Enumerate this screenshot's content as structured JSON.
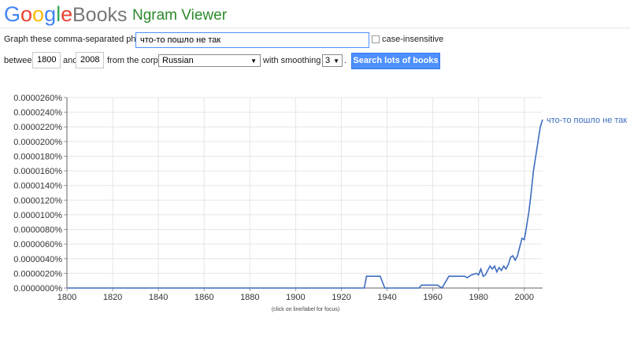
{
  "header": {
    "logo": "Google",
    "product": "Books",
    "title": "Ngram Viewer"
  },
  "form": {
    "phrases_label": "Graph these comma-separated phrases:",
    "phrases": "что-то пошло не так",
    "case_insensitive": "case-insensitive",
    "between": "between",
    "start_year": "1800",
    "and": "and",
    "end_year": "2008",
    "corpus_label": "from the corpus",
    "corpus": "Russian",
    "smoothing_label": "with smoothing of",
    "smoothing": "3",
    "period": ".",
    "button": "Search lots of books"
  },
  "chart_data": {
    "type": "line",
    "note": "(click on line/label for focus)",
    "x": [
      1800,
      1930,
      1931,
      1937,
      1939,
      1954,
      1955,
      1962,
      1964,
      1967,
      1974,
      1975,
      1977,
      1979,
      1980,
      1981,
      1982,
      1983,
      1985,
      1986,
      1987,
      1988,
      1989,
      1990,
      1991,
      1992,
      1993,
      1994,
      1995,
      1996,
      1997,
      1998,
      1999,
      2000,
      2001,
      2002,
      2003,
      2004,
      2005,
      2006,
      2007,
      2008
    ],
    "series": [
      {
        "name": "что-то пошло не так",
        "color": "#3d6cc0",
        "values": [
          0,
          0,
          1.6e-07,
          1.6e-07,
          0,
          0,
          4e-08,
          4e-08,
          0,
          1.6e-07,
          1.6e-07,
          1.4e-07,
          1.8e-07,
          2e-07,
          1.8e-07,
          2.6e-07,
          1.6e-07,
          1.8e-07,
          3e-07,
          2.6e-07,
          3e-07,
          2.2e-07,
          2.8e-07,
          2.4e-07,
          3e-07,
          2.6e-07,
          3.2e-07,
          4.2e-07,
          4.4e-07,
          3.8e-07,
          4.4e-07,
          5.6e-07,
          6.8e-07,
          6.6e-07,
          8.4e-07,
          1.04e-06,
          1.3e-06,
          1.6e-06,
          1.8e-06,
          2e-06,
          2.2e-06,
          2.3e-06
        ]
      }
    ],
    "xlim": [
      1800,
      2008
    ],
    "xticks": [
      1800,
      1820,
      1840,
      1860,
      1880,
      1900,
      1920,
      1940,
      1960,
      1980,
      2000
    ],
    "ylim": [
      0,
      2.6e-06
    ],
    "yticks": [
      {
        "value": 0,
        "label": "0.0000000%"
      },
      {
        "value": 2e-07,
        "label": "0.0000020%"
      },
      {
        "value": 4e-07,
        "label": "0.0000040%"
      },
      {
        "value": 6e-07,
        "label": "0.0000060%"
      },
      {
        "value": 8e-07,
        "label": "0.0000080%"
      },
      {
        "value": 1e-06,
        "label": "0.0000100%"
      },
      {
        "value": 1.2e-06,
        "label": "0.0000120%"
      },
      {
        "value": 1.4e-06,
        "label": "0.0000140%"
      },
      {
        "value": 1.6e-06,
        "label": "0.0000160%"
      },
      {
        "value": 1.8e-06,
        "label": "0.0000180%"
      },
      {
        "value": 2e-06,
        "label": "0.0000200%"
      },
      {
        "value": 2.2e-06,
        "label": "0.0000220%"
      },
      {
        "value": 2.4e-06,
        "label": "0.0000240%"
      },
      {
        "value": 2.6e-06,
        "label": "0.0000260%"
      }
    ],
    "grid": true
  }
}
